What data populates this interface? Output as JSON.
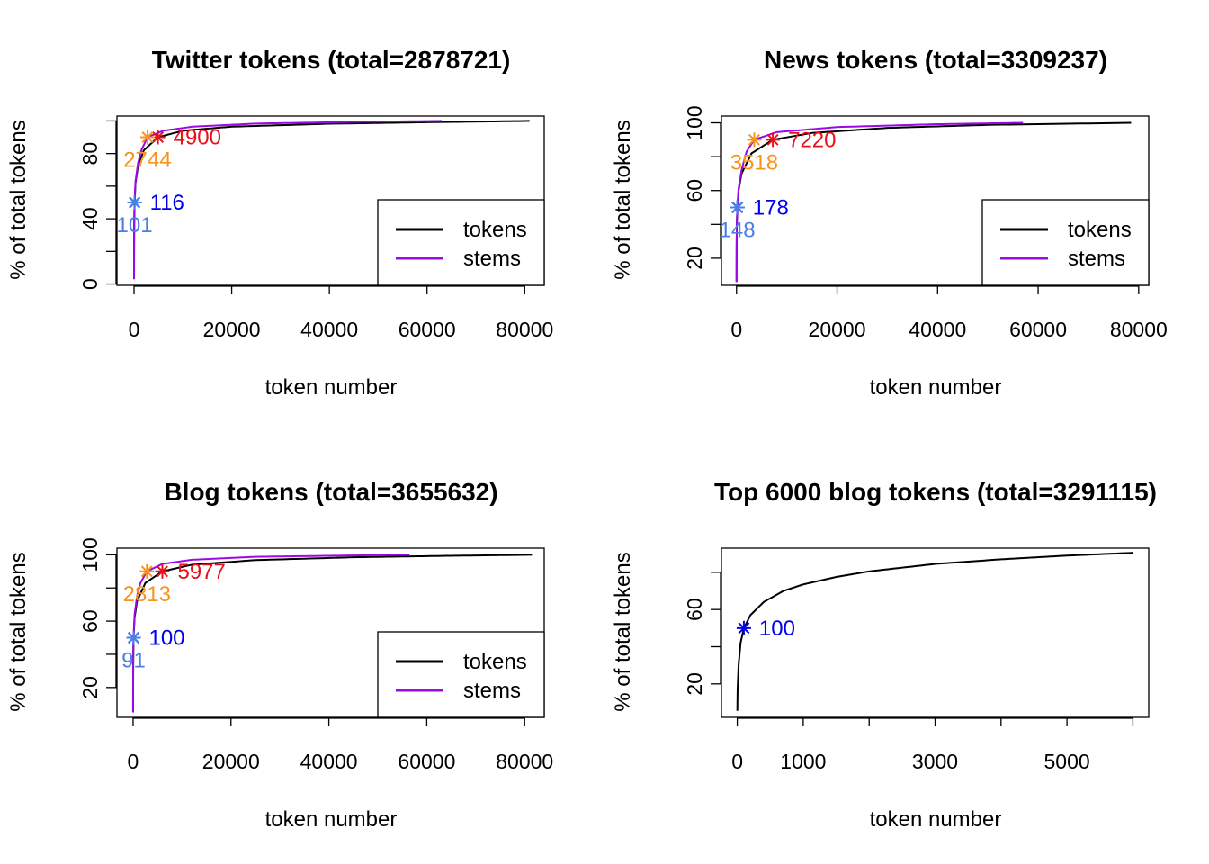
{
  "colors": {
    "tokens": "#000000",
    "stems": "#9a0ae6",
    "dark_blue": "#0000ee",
    "light_blue": "#4a7ee8",
    "orange": "#f7941d",
    "red": "#e8101a"
  },
  "chart_data": [
    {
      "type": "line",
      "title": "Twitter tokens (total=2878721)",
      "xlabel": "token number",
      "ylabel": "% of total tokens",
      "xlim": [
        -3500,
        84000
      ],
      "ylim": [
        -0.8,
        103
      ],
      "xticks": [
        0,
        20000,
        40000,
        60000,
        80000
      ],
      "xtick_labels": [
        "0",
        "20000",
        "40000",
        "60000",
        "80000"
      ],
      "yticks": [
        0,
        20,
        40,
        60,
        80,
        100
      ],
      "ytick_labels": [
        "0",
        "",
        "40",
        "",
        "80",
        ""
      ],
      "series": [
        {
          "name": "tokens",
          "color": "tokens",
          "x": [
            1,
            5,
            20,
            50,
            116,
            300,
            800,
            2000,
            4900,
            10000,
            20000,
            40000,
            60000,
            81000
          ],
          "y": [
            3,
            15,
            28,
            40,
            50,
            62,
            72,
            82,
            90,
            94,
            96.5,
            98.3,
            99.2,
            100
          ]
        },
        {
          "name": "stems",
          "color": "stems",
          "x": [
            1,
            5,
            20,
            50,
            101,
            300,
            800,
            1500,
            2744,
            6000,
            12000,
            25000,
            45000,
            63000
          ],
          "y": [
            3,
            17,
            31,
            43,
            50,
            63,
            74,
            82,
            90,
            94,
            96.5,
            98.4,
            99.4,
            100
          ]
        }
      ],
      "annotations": [
        {
          "x": 116,
          "y": 50,
          "label": "116",
          "color": "dark_blue",
          "pos": "right"
        },
        {
          "x": 101,
          "y": 50,
          "label": "101",
          "color": "light_blue",
          "pos": "below"
        },
        {
          "x": 4900,
          "y": 90,
          "label": "4900",
          "color": "red",
          "pos": "right"
        },
        {
          "x": 2744,
          "y": 90,
          "label": "2744",
          "color": "orange",
          "pos": "below"
        }
      ],
      "legend": {
        "position": "bottom-right",
        "entries": [
          "tokens",
          "stems"
        ]
      }
    },
    {
      "type": "line",
      "title": "News tokens (total=3309237)",
      "xlabel": "token number",
      "ylabel": "% of total tokens",
      "xlim": [
        -3000,
        82000
      ],
      "ylim": [
        4,
        104
      ],
      "xticks": [
        0,
        20000,
        40000,
        60000,
        80000
      ],
      "xtick_labels": [
        "0",
        "20000",
        "40000",
        "60000",
        "80000"
      ],
      "yticks": [
        20,
        40,
        60,
        80,
        100
      ],
      "ytick_labels": [
        "20",
        "",
        "60",
        "",
        "100"
      ],
      "series": [
        {
          "name": "tokens",
          "color": "tokens",
          "x": [
            1,
            5,
            20,
            60,
            178,
            400,
            1000,
            3000,
            7220,
            15000,
            30000,
            50000,
            78500
          ],
          "y": [
            6,
            16,
            28,
            40,
            50,
            60,
            70,
            82,
            90,
            94,
            97,
            98.8,
            100
          ]
        },
        {
          "name": "stems",
          "color": "stems",
          "x": [
            1,
            5,
            20,
            60,
            148,
            400,
            1000,
            2000,
            3518,
            8000,
            20000,
            40000,
            57000
          ],
          "y": [
            6,
            17,
            30,
            42,
            50,
            61,
            72,
            83,
            90,
            94.5,
            97.5,
            99.2,
            100
          ]
        }
      ],
      "annotations": [
        {
          "x": 178,
          "y": 50,
          "label": "178",
          "color": "dark_blue",
          "pos": "right"
        },
        {
          "x": 148,
          "y": 50,
          "label": "148",
          "color": "light_blue",
          "pos": "below"
        },
        {
          "x": 7220,
          "y": 90,
          "label": "7220",
          "color": "red",
          "pos": "right"
        },
        {
          "x": 3518,
          "y": 90,
          "label": "3518",
          "color": "orange",
          "pos": "below"
        }
      ],
      "legend": {
        "position": "bottom-right",
        "entries": [
          "tokens",
          "stems"
        ]
      }
    },
    {
      "type": "line",
      "title": "Blog tokens (total=3655632)",
      "xlabel": "token number",
      "ylabel": "% of total tokens",
      "xlim": [
        -3300,
        84000
      ],
      "ylim": [
        2,
        104
      ],
      "xticks": [
        0,
        20000,
        40000,
        60000,
        80000
      ],
      "xtick_labels": [
        "0",
        "20000",
        "40000",
        "60000",
        "80000"
      ],
      "yticks": [
        20,
        40,
        60,
        80,
        100
      ],
      "ytick_labels": [
        "20",
        "",
        "60",
        "",
        "100"
      ],
      "series": [
        {
          "name": "tokens",
          "color": "tokens",
          "x": [
            1,
            5,
            20,
            50,
            100,
            300,
            800,
            2500,
            5977,
            12000,
            25000,
            45000,
            65000,
            81500
          ],
          "y": [
            5,
            18,
            32,
            43,
            50,
            62,
            72,
            83,
            90,
            94,
            96.8,
            98.5,
            99.4,
            100
          ]
        },
        {
          "name": "stems",
          "color": "stems",
          "x": [
            1,
            5,
            20,
            50,
            91,
            300,
            800,
            1500,
            2813,
            6000,
            12000,
            25000,
            45000,
            56500
          ],
          "y": [
            5,
            19,
            34,
            45,
            50,
            64,
            75,
            83,
            90,
            94.5,
            97,
            98.8,
            99.6,
            100
          ]
        }
      ],
      "annotations": [
        {
          "x": 100,
          "y": 50,
          "label": "100",
          "color": "dark_blue",
          "pos": "right"
        },
        {
          "x": 91,
          "y": 50,
          "label": "91",
          "color": "light_blue",
          "pos": "below"
        },
        {
          "x": 5977,
          "y": 90,
          "label": "5977",
          "color": "red",
          "pos": "right"
        },
        {
          "x": 2813,
          "y": 90,
          "label": "2813",
          "color": "orange",
          "pos": "below"
        }
      ],
      "legend": {
        "position": "bottom-right",
        "entries": [
          "tokens",
          "stems"
        ]
      }
    },
    {
      "type": "line",
      "title": "Top 6000 blog tokens (total=3291115)",
      "xlabel": "token number",
      "ylabel": "% of total tokens",
      "xlim": [
        -240,
        6240
      ],
      "ylim": [
        2,
        93
      ],
      "xticks": [
        0,
        1000,
        2000,
        3000,
        4000,
        5000,
        6000
      ],
      "xtick_labels": [
        "0",
        "1000",
        "",
        "3000",
        "",
        "5000",
        ""
      ],
      "yticks": [
        20,
        40,
        60,
        80
      ],
      "ytick_labels": [
        "20",
        "",
        "60",
        ""
      ],
      "series": [
        {
          "name": "tokens",
          "color": "tokens",
          "x": [
            1,
            5,
            20,
            50,
            100,
            200,
            400,
            700,
            1000,
            1500,
            2000,
            3000,
            4000,
            5000,
            6000
          ],
          "y": [
            5.5,
            17,
            30,
            42,
            50,
            57,
            64,
            70,
            73.5,
            77.5,
            80.5,
            84.5,
            87,
            89,
            90.5
          ]
        }
      ],
      "annotations": [
        {
          "x": 100,
          "y": 50,
          "label": "100",
          "color": "dark_blue",
          "pos": "right"
        }
      ]
    }
  ]
}
